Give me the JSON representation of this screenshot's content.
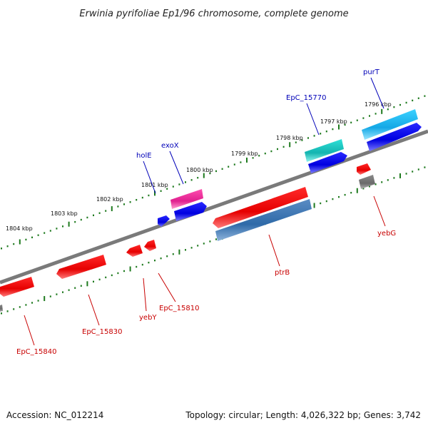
{
  "title": "Erwinia pyrifoliae Ep1/96 chromosome, complete genome",
  "footer": {
    "accession": "Accession: NC_012214",
    "summary": "Topology: circular; Length: 4,026,322 bp; Genes: 3,742"
  },
  "colors": {
    "backbone": "#7a7a7a",
    "tick": "#1e7a1e",
    "forward_label": "#0000b8",
    "reverse_label": "#c80000"
  },
  "scale_labels": [
    "1804 kbp",
    "1803 kbp",
    "1802 kbp",
    "1801 kbp",
    "1800 kbp",
    "1799 kbp",
    "1798 kbp",
    "1797 kbp",
    "1796 kbp"
  ],
  "forward_labels": [
    "holE",
    "exoX",
    "EpC_15770",
    "purT"
  ],
  "reverse_labels": [
    "EpC_15840",
    "EpC_15830",
    "yebY",
    "EpC_15810",
    "ptrB",
    "yebG"
  ]
}
